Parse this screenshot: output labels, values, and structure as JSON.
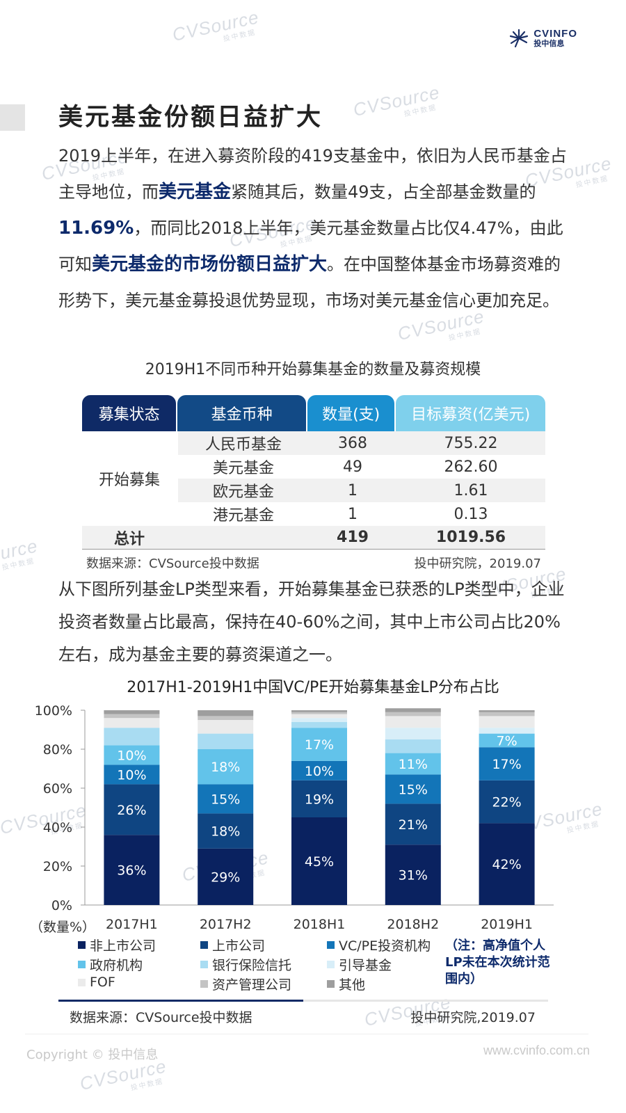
{
  "watermark": {
    "text": "CVSource",
    "sub": "投中数据"
  },
  "logo": {
    "brand": "CVINFO",
    "sub": "投中信息"
  },
  "title": "美元基金份额日益扩大",
  "para1": {
    "t1": "2019上半年，在进入募资阶段的419支基金中，依旧为人民币基金占主导地位，而",
    "h1": "美元基金",
    "t2": "紧随其后，数量49支，占全部基金数量的",
    "h2": "11.69%",
    "t3": "，而同比2018上半年，美元基金数量占比仅4.47%，由此可知",
    "h3": "美元基金的市场份额日益扩大",
    "t4": "。在中国整体基金市场募资难的形势下，美元基金募投退优势显现，市场对美元基金信心更加充足。"
  },
  "table": {
    "title": "2019H1不同币种开始募集基金的数量及募资规模",
    "headers": [
      "募集状态",
      "基金币种",
      "数量(支)",
      "目标募资(亿美元)"
    ],
    "status": "开始募集",
    "rows": [
      {
        "currency": "人民币基金",
        "count": "368",
        "amount": "755.22"
      },
      {
        "currency": "美元基金",
        "count": "49",
        "amount": "262.60"
      },
      {
        "currency": "欧元基金",
        "count": "1",
        "amount": "1.61"
      },
      {
        "currency": "港元基金",
        "count": "1",
        "amount": "0.13"
      }
    ],
    "total": {
      "label": "总计",
      "count": "419",
      "amount": "1019.56"
    },
    "source_left": "数据来源：CVSource投中数据",
    "source_right": "投中研究院，2019.07"
  },
  "para2": "从下图所列基金LP类型来看，开始募集基金已获悉的LP类型中，企业投资者数量占比最高，保持在40-60%之间，其中上市公司占比20%左右，成为基金主要的募资渠道之一。",
  "chart_data": {
    "type": "bar",
    "stacked": true,
    "title": "2017H1-2019H1中国VC/PE开始募集基金LP分布占比",
    "ylabel": "（数量%）",
    "ylim": [
      0,
      100
    ],
    "yticks": [
      "0%",
      "20%",
      "40%",
      "60%",
      "80%",
      "100%"
    ],
    "categories": [
      "2017H1",
      "2017H2",
      "2018H1",
      "2018H2",
      "2019H1"
    ],
    "series": [
      {
        "name": "非上市公司",
        "color": "#0a2260",
        "values": [
          36,
          29,
          45,
          31,
          42
        ],
        "labels": [
          "36%",
          "29%",
          "45%",
          "31%",
          "42%"
        ]
      },
      {
        "name": "上市公司",
        "color": "#0f4582",
        "values": [
          26,
          18,
          19,
          21,
          22
        ],
        "labels": [
          "26%",
          "18%",
          "19%",
          "21%",
          "22%"
        ]
      },
      {
        "name": "VC/PE投资机构",
        "color": "#1375b8",
        "values": [
          10,
          15,
          10,
          15,
          17
        ],
        "labels": [
          "10%",
          "15%",
          "10%",
          "15%",
          "17%"
        ]
      },
      {
        "name": "政府机构",
        "color": "#62c3ea",
        "values": [
          10,
          18,
          17,
          11,
          7
        ],
        "labels": [
          "10%",
          "18%",
          "17%",
          "11%",
          "7%"
        ]
      },
      {
        "name": "银行保险信托",
        "color": "#a9dcf2",
        "values": [
          9,
          8,
          3,
          7,
          0
        ],
        "labels": [
          "",
          "",
          "",
          "",
          ""
        ]
      },
      {
        "name": "引导基金",
        "color": "#d8eef8",
        "values": [
          0,
          0,
          2,
          6,
          3
        ],
        "labels": [
          "",
          "",
          "",
          "",
          ""
        ]
      },
      {
        "name": "FOF",
        "color": "#ebebeb",
        "values": [
          5,
          7,
          2,
          6,
          6
        ],
        "labels": [
          "",
          "",
          "",
          "",
          ""
        ]
      },
      {
        "name": "资产管理公司",
        "color": "#c4c4c4",
        "values": [
          2,
          2,
          1,
          2,
          2
        ],
        "labels": [
          "",
          "",
          "",
          "",
          ""
        ]
      },
      {
        "name": "其他",
        "color": "#9e9e9e",
        "values": [
          2,
          3,
          1,
          2,
          1
        ],
        "labels": [
          "",
          "",
          "",
          "",
          ""
        ]
      }
    ],
    "legend_position": "bottom",
    "grid": false
  },
  "chart_note": "（注：高净值个人LP未在本次统计范围内）",
  "chart_source_left": "数据来源：CVSource投中数据",
  "chart_source_right": "投中研究院,2019.07",
  "footer": {
    "copyright": "Copyright © 投中信息",
    "url": "www.cvinfo.com.cn"
  }
}
